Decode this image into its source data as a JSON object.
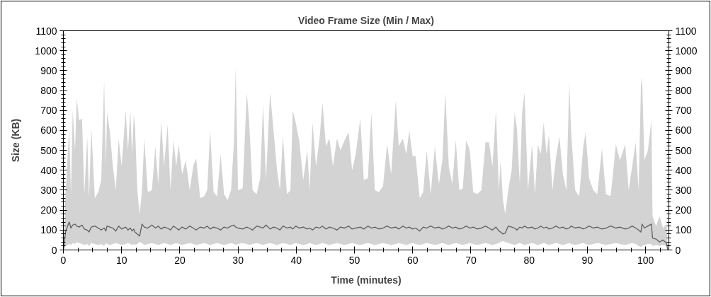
{
  "chart_data": {
    "type": "line",
    "title": "Video Frame Size (Min / Max)",
    "xlabel": "Time (minutes)",
    "ylabel": "Size (KB)",
    "xlim": [
      0,
      104
    ],
    "xticks": [
      0,
      10,
      20,
      30,
      40,
      50,
      60,
      70,
      80,
      90,
      100
    ],
    "ylim": [
      0,
      1100
    ],
    "yticks": [
      0,
      100,
      200,
      300,
      400,
      500,
      600,
      700,
      800,
      900,
      1000,
      1100
    ],
    "y2lim": [
      0,
      1100
    ],
    "y2ticks": [
      0,
      100,
      200,
      300,
      400,
      500,
      600,
      700,
      800,
      900,
      1000,
      1100
    ],
    "grid": false,
    "x": [
      0.0,
      0.4,
      1.0,
      1.3,
      1.6,
      2.0,
      2.3,
      2.7,
      3.2,
      3.6,
      4.1,
      4.4,
      4.8,
      5.4,
      6.0,
      6.5,
      7.0,
      7.3,
      7.5,
      8.0,
      8.5,
      9.0,
      9.5,
      10.0,
      10.7,
      11.1,
      11.5,
      11.8,
      12.1,
      12.3,
      12.7,
      13.1,
      13.5,
      13.9,
      14.5,
      15.2,
      15.8,
      16.3,
      16.8,
      17.3,
      17.9,
      18.4,
      18.9,
      19.4,
      19.8,
      20.4,
      21.0,
      21.7,
      22.3,
      22.8,
      23.5,
      24.2,
      24.7,
      25.2,
      25.8,
      26.4,
      27.0,
      27.6,
      28.2,
      28.8,
      29.3,
      29.6,
      30.0,
      30.8,
      31.5,
      31.9,
      32.5,
      33.2,
      33.8,
      34.3,
      34.8,
      35.5,
      36.1,
      36.7,
      37.2,
      37.7,
      38.4,
      39.0,
      39.4,
      39.9,
      40.5,
      41.2,
      41.9,
      42.3,
      42.8,
      43.4,
      44.0,
      44.5,
      45.1,
      45.7,
      46.3,
      47.0,
      47.6,
      48.3,
      49.0,
      49.6,
      50.2,
      51.0,
      51.6,
      52.3,
      52.9,
      53.5,
      54.2,
      54.9,
      55.6,
      56.3,
      57.1,
      57.6,
      58.3,
      58.9,
      59.4,
      60.0,
      60.5,
      61.2,
      61.8,
      62.4,
      63.1,
      63.8,
      64.5,
      65.1,
      65.6,
      66.2,
      66.8,
      67.4,
      68.0,
      68.6,
      69.2,
      69.8,
      70.4,
      71.1,
      71.8,
      72.5,
      73.1,
      73.7,
      74.3,
      74.8,
      75.1,
      75.5,
      75.9,
      76.4,
      77.0,
      77.5,
      77.9,
      78.4,
      78.8,
      79.2,
      79.8,
      80.5,
      81.0,
      81.5,
      82.0,
      82.5,
      83.0,
      83.4,
      84.0,
      84.6,
      85.2,
      85.8,
      86.4,
      86.9,
      87.2,
      87.9,
      88.6,
      89.3,
      89.7,
      90.3,
      91.0,
      91.7,
      92.5,
      93.2,
      94.0,
      94.9,
      95.6,
      96.5,
      97.1,
      97.7,
      98.3,
      98.8,
      99.2,
      99.4,
      99.8,
      100.4,
      101.0,
      101.2,
      101.8,
      102.4,
      103.0,
      103.6,
      103.8
    ],
    "series": [
      {
        "color": "#5f5f5f",
        "values": [
          0,
          95,
          140,
          110,
          125,
          130,
          120,
          115,
          125,
          105,
          100,
          90,
          115,
          120,
          110,
          100,
          110,
          95,
          120,
          115,
          110,
          95,
          120,
          105,
          115,
          100,
          110,
          95,
          105,
          90,
          80,
          70,
          130,
          115,
          110,
          125,
          110,
          120,
          105,
          115,
          110,
          100,
          120,
          110,
          100,
          115,
          105,
          120,
          110,
          100,
          115,
          110,
          120,
          105,
          115,
          110,
          100,
          115,
          110,
          120,
          125,
          115,
          110,
          105,
          115,
          110,
          100,
          120,
          115,
          110,
          125,
          105,
          115,
          110,
          100,
          120,
          110,
          115,
          105,
          120,
          110,
          115,
          105,
          110,
          100,
          115,
          110,
          120,
          105,
          115,
          110,
          100,
          115,
          110,
          120,
          105,
          110,
          115,
          105,
          120,
          110,
          115,
          105,
          110,
          120,
          110,
          115,
          105,
          120,
          110,
          115,
          105,
          110,
          95,
          115,
          110,
          120,
          110,
          115,
          105,
          110,
          120,
          110,
          115,
          105,
          110,
          120,
          110,
          115,
          105,
          110,
          120,
          110,
          100,
          115,
          95,
          90,
          80,
          85,
          120,
          115,
          110,
          100,
          115,
          110,
          120,
          110,
          115,
          105,
          110,
          120,
          110,
          115,
          105,
          110,
          120,
          110,
          115,
          105,
          110,
          120,
          110,
          115,
          105,
          110,
          120,
          110,
          115,
          105,
          110,
          120,
          110,
          115,
          105,
          110,
          120,
          110,
          100,
          90,
          130,
          110,
          120,
          130,
          60,
          55,
          40,
          50,
          35,
          0
        ],
        "lower": [
          0,
          20,
          30,
          25,
          35,
          30,
          40,
          35,
          30,
          25,
          30,
          20,
          35,
          30,
          25,
          30,
          20,
          35,
          30,
          25,
          30,
          35,
          30,
          25,
          30,
          35,
          30,
          25,
          30,
          25,
          30,
          40,
          35,
          25,
          30,
          35,
          30,
          25,
          30,
          35,
          30,
          25,
          30,
          35,
          30,
          25,
          30,
          35,
          30,
          25,
          30,
          35,
          30,
          25,
          30,
          35,
          30,
          25,
          30,
          35,
          30,
          25,
          30,
          35,
          30,
          25,
          30,
          35,
          30,
          25,
          30,
          35,
          30,
          25,
          30,
          35,
          30,
          25,
          30,
          35,
          30,
          25,
          30,
          35,
          30,
          25,
          30,
          35,
          30,
          25,
          30,
          35,
          30,
          25,
          30,
          35,
          30,
          25,
          30,
          35,
          30,
          25,
          30,
          35,
          30,
          25,
          30,
          35,
          30,
          25,
          30,
          35,
          30,
          25,
          30,
          35,
          30,
          25,
          30,
          35,
          30,
          25,
          30,
          35,
          30,
          25,
          30,
          35,
          30,
          25,
          30,
          35,
          30,
          25,
          30,
          35,
          40,
          45,
          40,
          35,
          30,
          25,
          30,
          35,
          30,
          25,
          30,
          35,
          30,
          25,
          30,
          35,
          30,
          25,
          30,
          35,
          30,
          25,
          30,
          35,
          30,
          25,
          30,
          35,
          30,
          25,
          30,
          35,
          30,
          25,
          30,
          35,
          30,
          25,
          30,
          35,
          30,
          20,
          15,
          20,
          25,
          30,
          30,
          20,
          25,
          20,
          25,
          20,
          0
        ],
        "upper": [
          0,
          300,
          610,
          280,
          700,
          500,
          760,
          650,
          660,
          280,
          570,
          260,
          610,
          260,
          290,
          350,
          850,
          420,
          690,
          590,
          420,
          300,
          560,
          420,
          700,
          500,
          700,
          480,
          680,
          620,
          300,
          180,
          300,
          560,
          290,
          300,
          520,
          330,
          650,
          420,
          630,
          300,
          550,
          420,
          530,
          380,
          450,
          300,
          420,
          460,
          260,
          270,
          300,
          600,
          290,
          270,
          480,
          280,
          250,
          300,
          540,
          920,
          300,
          310,
          790,
          650,
          300,
          280,
          360,
          730,
          350,
          790,
          600,
          400,
          300,
          570,
          280,
          300,
          700,
          640,
          550,
          350,
          500,
          300,
          640,
          420,
          560,
          740,
          520,
          560,
          420,
          560,
          500,
          550,
          590,
          400,
          480,
          660,
          350,
          360,
          690,
          300,
          290,
          320,
          530,
          380,
          750,
          520,
          560,
          480,
          600,
          470,
          470,
          260,
          290,
          500,
          280,
          520,
          330,
          450,
          790,
          420,
          330,
          550,
          300,
          310,
          550,
          500,
          290,
          280,
          300,
          540,
          540,
          420,
          700,
          300,
          450,
          250,
          180,
          300,
          400,
          690,
          610,
          330,
          690,
          790,
          300,
          530,
          280,
          530,
          480,
          640,
          480,
          580,
          300,
          460,
          570,
          380,
          300,
          840,
          600,
          300,
          270,
          520,
          590,
          360,
          300,
          280,
          510,
          280,
          270,
          530,
          450,
          530,
          300,
          420,
          540,
          300,
          820,
          870,
          450,
          500,
          650,
          170,
          120,
          170,
          110,
          130,
          0
        ]
      }
    ]
  }
}
